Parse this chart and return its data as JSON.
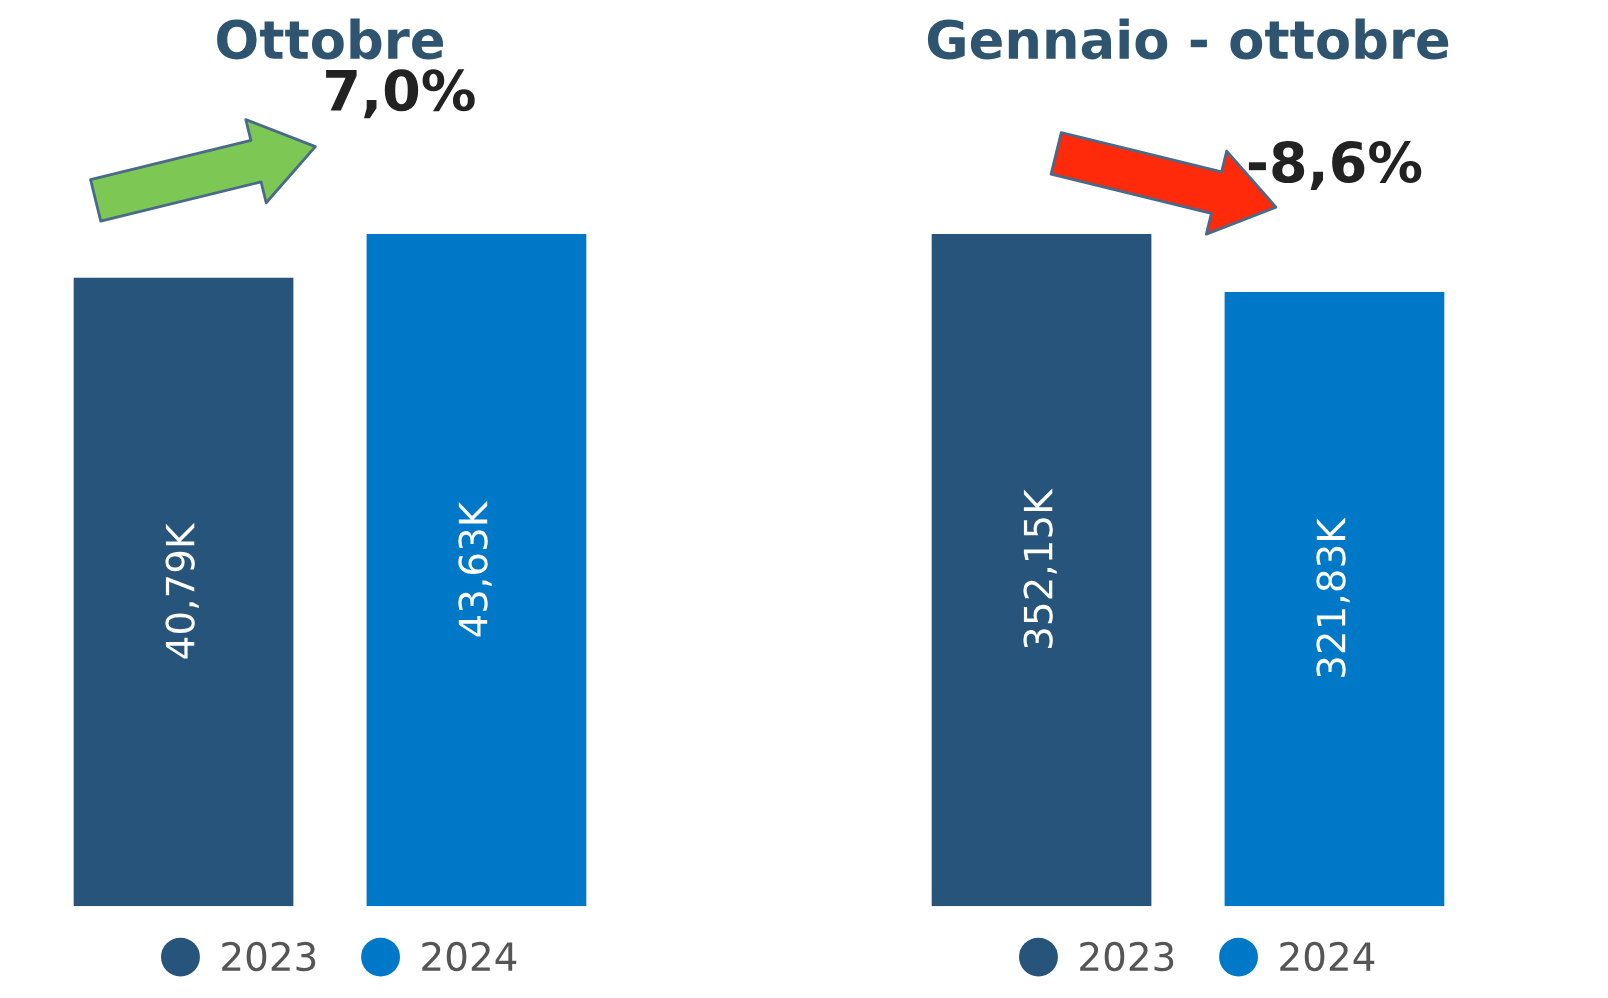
{
  "chart_data": [
    {
      "type": "bar",
      "title": "Ottobre",
      "categories": [
        null
      ],
      "legend": "bottom",
      "annotations": [
        "7,0%"
      ],
      "series": [
        {
          "name": "2023",
          "color": "#27547a",
          "values": [
            40.79
          ],
          "value_labels": [
            "40,79K"
          ]
        },
        {
          "name": "2024",
          "color": "#0078c8",
          "values": [
            43.63
          ],
          "value_labels": [
            "43,63K"
          ]
        }
      ]
    },
    {
      "type": "bar",
      "title": "Gennaio - ottobre",
      "categories": [
        null
      ],
      "legend": "bottom",
      "annotations": [
        "-8,6%"
      ],
      "series": [
        {
          "name": "2023",
          "color": "#27547a",
          "values": [
            352.15
          ],
          "value_labels": [
            "352,15K"
          ]
        },
        {
          "name": "2024",
          "color": "#0078c8",
          "values": [
            321.83
          ],
          "value_labels": [
            "321,83K"
          ]
        }
      ]
    }
  ]
}
